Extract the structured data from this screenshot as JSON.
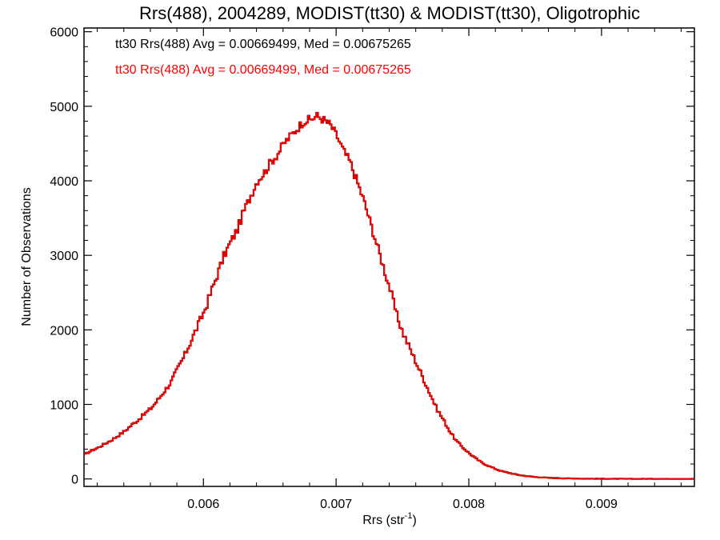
{
  "chart_data": {
    "type": "line",
    "title": "Rrs(488), 2004289, MODIST(tt30) & MODIST(tt30), Oligotrophic",
    "xlabel_main": "Rrs (str",
    "xlabel_sup": "-1",
    "xlabel_close": ")",
    "ylabel": "Number of Observations",
    "xlim": [
      0.0051,
      0.0097
    ],
    "ylim": [
      -100,
      6050
    ],
    "x_ticks": [
      0.006,
      0.007,
      0.008,
      0.009
    ],
    "x_tick_labels": [
      "0.006",
      "0.007",
      "0.008",
      "0.009"
    ],
    "y_ticks": [
      0,
      1000,
      2000,
      3000,
      4000,
      5000,
      6000
    ],
    "y_tick_labels": [
      "0",
      "1000",
      "2000",
      "3000",
      "4000",
      "5000",
      "6000"
    ],
    "legend": [
      {
        "text": "tt30 Rrs(488) Avg = 0.00669499, Med = 0.00675265",
        "color": "#000000"
      },
      {
        "text": "tt30 Rrs(488) Avg = 0.00669499, Med = 0.00675265",
        "color": "#ff0000"
      }
    ],
    "series": [
      {
        "color": "#000000",
        "style": "step",
        "points": [
          [
            0.0051,
            330
          ],
          [
            0.00515,
            380
          ],
          [
            0.0052,
            420
          ],
          [
            0.00525,
            470
          ],
          [
            0.0053,
            520
          ],
          [
            0.00535,
            580
          ],
          [
            0.0054,
            640
          ],
          [
            0.00545,
            720
          ],
          [
            0.0055,
            790
          ],
          [
            0.00555,
            870
          ],
          [
            0.0056,
            950
          ],
          [
            0.00565,
            1060
          ],
          [
            0.0057,
            1180
          ],
          [
            0.00575,
            1300
          ],
          [
            0.0058,
            1480
          ],
          [
            0.00585,
            1650
          ],
          [
            0.0059,
            1850
          ],
          [
            0.00595,
            2050
          ],
          [
            0.006,
            2250
          ],
          [
            0.00605,
            2500
          ],
          [
            0.0061,
            2750
          ],
          [
            0.00615,
            3000
          ],
          [
            0.0062,
            3180
          ],
          [
            0.00625,
            3350
          ],
          [
            0.0063,
            3600
          ],
          [
            0.00635,
            3800
          ],
          [
            0.0064,
            4000
          ],
          [
            0.00645,
            4100
          ],
          [
            0.0065,
            4250
          ],
          [
            0.00655,
            4350
          ],
          [
            0.0066,
            4500
          ],
          [
            0.00665,
            4600
          ],
          [
            0.0067,
            4700
          ],
          [
            0.00675,
            4800
          ],
          [
            0.0068,
            4820
          ],
          [
            0.00685,
            4870
          ],
          [
            0.0069,
            4820
          ],
          [
            0.00695,
            4750
          ],
          [
            0.007,
            4600
          ],
          [
            0.00705,
            4400
          ],
          [
            0.0071,
            4250
          ],
          [
            0.00715,
            4000
          ],
          [
            0.0072,
            3750
          ],
          [
            0.00725,
            3450
          ],
          [
            0.0073,
            3150
          ],
          [
            0.00735,
            2850
          ],
          [
            0.0074,
            2550
          ],
          [
            0.00745,
            2200
          ],
          [
            0.0075,
            1950
          ],
          [
            0.00755,
            1750
          ],
          [
            0.0076,
            1550
          ],
          [
            0.00765,
            1350
          ],
          [
            0.0077,
            1150
          ],
          [
            0.00775,
            950
          ],
          [
            0.0078,
            800
          ],
          [
            0.00785,
            640
          ],
          [
            0.0079,
            510
          ],
          [
            0.00795,
            420
          ],
          [
            0.008,
            340
          ],
          [
            0.00805,
            270
          ],
          [
            0.0081,
            210
          ],
          [
            0.00815,
            170
          ],
          [
            0.0082,
            130
          ],
          [
            0.00825,
            100
          ],
          [
            0.0083,
            80
          ],
          [
            0.00835,
            60
          ],
          [
            0.0084,
            45
          ],
          [
            0.00845,
            35
          ],
          [
            0.0085,
            25
          ],
          [
            0.00855,
            20
          ],
          [
            0.0086,
            15
          ],
          [
            0.00865,
            12
          ],
          [
            0.0087,
            9
          ],
          [
            0.00875,
            7
          ],
          [
            0.0088,
            5
          ],
          [
            0.00885,
            4
          ],
          [
            0.0089,
            3
          ],
          [
            0.009,
            2
          ],
          [
            0.0092,
            1
          ],
          [
            0.0094,
            1
          ],
          [
            0.0096,
            0
          ]
        ]
      },
      {
        "color": "#ff0000",
        "style": "step",
        "points": [
          [
            0.0051,
            330
          ],
          [
            0.00515,
            380
          ],
          [
            0.0052,
            420
          ],
          [
            0.00525,
            470
          ],
          [
            0.0053,
            520
          ],
          [
            0.00535,
            580
          ],
          [
            0.0054,
            640
          ],
          [
            0.00545,
            720
          ],
          [
            0.0055,
            790
          ],
          [
            0.00555,
            870
          ],
          [
            0.0056,
            950
          ],
          [
            0.00565,
            1060
          ],
          [
            0.0057,
            1180
          ],
          [
            0.00575,
            1300
          ],
          [
            0.0058,
            1480
          ],
          [
            0.00585,
            1650
          ],
          [
            0.0059,
            1850
          ],
          [
            0.00595,
            2050
          ],
          [
            0.006,
            2250
          ],
          [
            0.00605,
            2500
          ],
          [
            0.0061,
            2750
          ],
          [
            0.00615,
            3000
          ],
          [
            0.0062,
            3180
          ],
          [
            0.00625,
            3350
          ],
          [
            0.0063,
            3600
          ],
          [
            0.00635,
            3800
          ],
          [
            0.0064,
            4000
          ],
          [
            0.00645,
            4100
          ],
          [
            0.0065,
            4250
          ],
          [
            0.00655,
            4350
          ],
          [
            0.0066,
            4500
          ],
          [
            0.00665,
            4600
          ],
          [
            0.0067,
            4700
          ],
          [
            0.00675,
            4800
          ],
          [
            0.0068,
            4820
          ],
          [
            0.00685,
            4870
          ],
          [
            0.0069,
            4820
          ],
          [
            0.00695,
            4750
          ],
          [
            0.007,
            4600
          ],
          [
            0.00705,
            4400
          ],
          [
            0.0071,
            4250
          ],
          [
            0.00715,
            4000
          ],
          [
            0.0072,
            3750
          ],
          [
            0.00725,
            3450
          ],
          [
            0.0073,
            3150
          ],
          [
            0.00735,
            2850
          ],
          [
            0.0074,
            2550
          ],
          [
            0.00745,
            2200
          ],
          [
            0.0075,
            1950
          ],
          [
            0.00755,
            1750
          ],
          [
            0.0076,
            1550
          ],
          [
            0.00765,
            1350
          ],
          [
            0.0077,
            1150
          ],
          [
            0.00775,
            950
          ],
          [
            0.0078,
            800
          ],
          [
            0.00785,
            640
          ],
          [
            0.0079,
            510
          ],
          [
            0.00795,
            420
          ],
          [
            0.008,
            340
          ],
          [
            0.00805,
            270
          ],
          [
            0.0081,
            210
          ],
          [
            0.00815,
            170
          ],
          [
            0.0082,
            130
          ],
          [
            0.00825,
            100
          ],
          [
            0.0083,
            80
          ],
          [
            0.00835,
            60
          ],
          [
            0.0084,
            45
          ],
          [
            0.00845,
            35
          ],
          [
            0.0085,
            25
          ],
          [
            0.00855,
            20
          ],
          [
            0.0086,
            15
          ],
          [
            0.00865,
            12
          ],
          [
            0.0087,
            9
          ],
          [
            0.00875,
            7
          ],
          [
            0.0088,
            5
          ],
          [
            0.00885,
            4
          ],
          [
            0.0089,
            3
          ],
          [
            0.009,
            2
          ],
          [
            0.0092,
            1
          ],
          [
            0.0094,
            1
          ],
          [
            0.0096,
            0
          ]
        ]
      }
    ]
  }
}
